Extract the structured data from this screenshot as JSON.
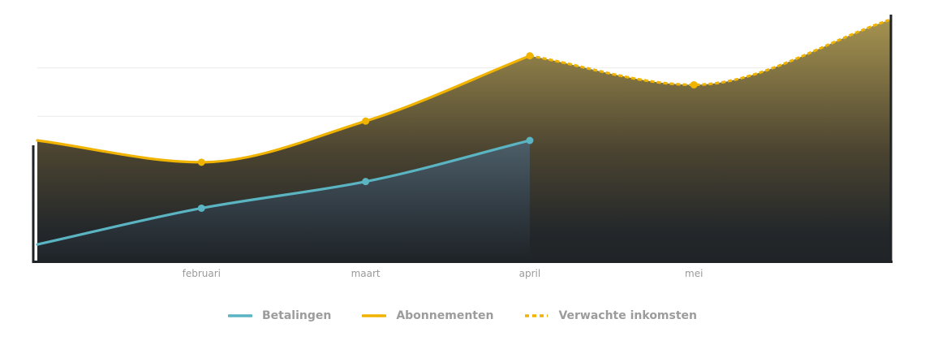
{
  "colors": {
    "betalingen": "#5ab4c2",
    "abonnementen": "#f0b400",
    "grid": "#ececec",
    "axis": "#1f2326",
    "tick_text": "#9a9a9a"
  },
  "chart_data": {
    "type": "area",
    "x_domain": [
      0.25,
      5.45
    ],
    "ylim": [
      0,
      100
    ],
    "grid": true,
    "legend_position": "bottom",
    "categories": [
      "februari",
      "maart",
      "april",
      "mei"
    ],
    "category_positions": [
      1.25,
      2.25,
      3.25,
      4.25
    ],
    "series": [
      {
        "name": "Betalingen",
        "key": "betalingen",
        "style": "solid",
        "x": [
          0.25,
          1.25,
          2.25,
          3.25
        ],
        "values": [
          7,
          22,
          33,
          50
        ]
      },
      {
        "name": "Abonnementen",
        "key": "abonnementen",
        "style": "solid",
        "x": [
          0.25,
          1.25,
          2.25,
          3.25
        ],
        "values": [
          50,
          41,
          58,
          85
        ]
      },
      {
        "name": "Verwachte inkomsten",
        "key": "abonnementen",
        "style": "dashed",
        "x": [
          3.25,
          4.25,
          5.45
        ],
        "values": [
          85,
          73,
          100
        ]
      }
    ],
    "xlabel": "",
    "ylabel": ""
  },
  "legend": {
    "items": [
      {
        "label": "Betalingen",
        "style": "solid",
        "color_key": "betalingen"
      },
      {
        "label": "Abonnementen",
        "style": "solid",
        "color_key": "abonnementen"
      },
      {
        "label": "Verwachte inkomsten",
        "style": "dashed",
        "color_key": "abonnementen"
      }
    ]
  }
}
